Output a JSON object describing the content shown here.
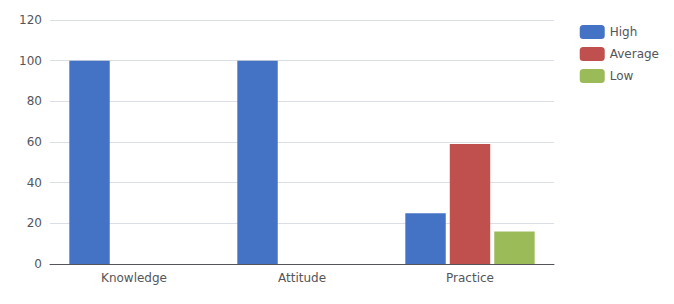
{
  "chart_data": {
    "type": "bar",
    "categories": [
      "Knowledge",
      "Attitude",
      "Practice"
    ],
    "series": [
      {
        "name": "High",
        "color": "#4472C4",
        "values": [
          100,
          100,
          25
        ]
      },
      {
        "name": "Average",
        "color": "#C0504D",
        "values": [
          0,
          0,
          59
        ]
      },
      {
        "name": "Low",
        "color": "#9BBB59",
        "values": [
          0,
          0,
          16
        ]
      }
    ],
    "ylim": [
      0,
      120
    ],
    "yticks": [
      0,
      20,
      40,
      60,
      80,
      100,
      120
    ],
    "grid": true,
    "legend": "right"
  }
}
